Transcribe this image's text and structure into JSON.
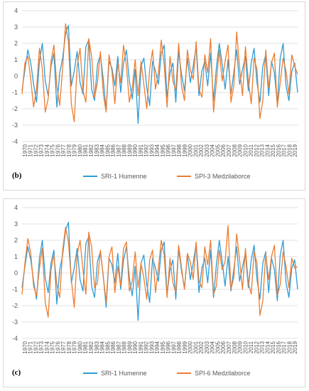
{
  "chart_data": [
    {
      "type": "line",
      "panel_label": "(b)",
      "ylim": [
        -4,
        4
      ],
      "y_ticks": [
        4,
        3,
        2,
        1,
        0,
        -1,
        -2,
        -3,
        -4
      ],
      "x_ticks": [
        "1970",
        "1971",
        "1972",
        "1973",
        "1974",
        "1975",
        "1976",
        "1977",
        "1978",
        "1979",
        "1980",
        "1981",
        "1982",
        "1983",
        "1984",
        "1985",
        "1986",
        "1987",
        "1988",
        "1989",
        "1990",
        "1991",
        "1992",
        "1993",
        "1994",
        "1995",
        "1996",
        "1997",
        "1998",
        "1999",
        "2000",
        "2001",
        "2002",
        "2003",
        "2004",
        "2005",
        "2006",
        "2007",
        "2008",
        "2009",
        "2010",
        "2011",
        "2012",
        "2013",
        "2014",
        "2015",
        "2016",
        "2017",
        "2018",
        "2019"
      ],
      "legend_position": "bottom",
      "grid": true,
      "series": [
        {
          "name": "SRI-1 Humenne",
          "color": "#2E9BD6",
          "values": [
            -0.9,
            0.4,
            1.6,
            0.8,
            -0.5,
            -1.6,
            0.9,
            2.0,
            -0.3,
            -1.2,
            0.6,
            1.4,
            -1.9,
            0.2,
            1.1,
            2.6,
            3.1,
            -0.6,
            0.3,
            1.5,
            -0.4,
            -1.1,
            1.8,
            2.2,
            -0.8,
            -1.5,
            0.7,
            1.3,
            -0.2,
            -2.1,
            0.9,
            0.5,
            -0.6,
            1.2,
            -1.0,
            0.8,
            1.6,
            -0.3,
            -1.4,
            0.4,
            -2.9,
            0.6,
            1.1,
            -0.7,
            -1.8,
            0.9,
            0.3,
            -0.5,
            1.4,
            1.9,
            -1.3,
            0.2,
            0.8,
            -1.6,
            1.5,
            0.1,
            -0.9,
            1.1,
            -0.4,
            0.6,
            1.8,
            -1.2,
            0.3,
            0.9,
            -0.6,
            1.4,
            -1.5,
            0.5,
            2.0,
            0.7,
            -0.8,
            1.0,
            -1.1,
            0.2,
            1.6,
            -0.5,
            0.4,
            1.2,
            -0.9,
            0.8,
            1.7,
            -0.4,
            -1.6,
            0.6,
            1.3,
            -1.2,
            0.9,
            0.2,
            -1.7,
            1.1,
            2.0,
            -0.6,
            -1.5,
            0.3,
            0.8,
            -1.0
          ]
        },
        {
          "name": "SPI-3 Medzilaborce",
          "color": "#ED7D31",
          "values": [
            -1.1,
            0.8,
            1.2,
            -0.2,
            -1.9,
            -0.8,
            1.7,
            0.4,
            -2.2,
            -1.4,
            0.9,
            1.9,
            -0.6,
            -1.8,
            0.5,
            3.2,
            2.1,
            -1.7,
            -2.8,
            0.6,
            1.7,
            -0.9,
            -1.6,
            2.3,
            1.2,
            -1.3,
            -0.4,
            1.5,
            -1.1,
            -2.2,
            1.3,
            0.3,
            -1.7,
            0.8,
            -0.4,
            1.9,
            0.6,
            -1.6,
            -0.7,
            1.0,
            -1.2,
            0.9,
            -0.5,
            -2.0,
            0.4,
            1.6,
            -0.8,
            0.2,
            2.2,
            0.7,
            -1.9,
            1.2,
            -0.3,
            -0.9,
            2.0,
            -0.6,
            -1.5,
            1.6,
            0.4,
            -0.2,
            2.1,
            -0.8,
            -1.3,
            1.3,
            0.2,
            2.3,
            -2.2,
            -0.4,
            1.6,
            -0.3,
            0.9,
            1.9,
            -1.6,
            -0.6,
            2.7,
            0.5,
            -1.2,
            1.8,
            -0.3,
            -1.7,
            1.1,
            0.4,
            -2.6,
            -1.5,
            1.6,
            -0.7,
            0.8,
            1.4,
            -1.9,
            -0.4,
            1.1,
            0.3,
            -1.1,
            1.3,
            0.6,
            0.1
          ]
        }
      ]
    },
    {
      "type": "line",
      "panel_label": "(c)",
      "ylim": [
        -4,
        4
      ],
      "y_ticks": [
        4,
        3,
        2,
        1,
        0,
        -1,
        -2,
        -3,
        -4
      ],
      "x_ticks": [
        "1970",
        "1971",
        "1972",
        "1973",
        "1974",
        "1975",
        "1976",
        "1977",
        "1978",
        "1979",
        "1980",
        "1981",
        "1982",
        "1983",
        "1984",
        "1985",
        "1986",
        "1987",
        "1988",
        "1989",
        "1990",
        "1991",
        "1992",
        "1993",
        "1994",
        "1995",
        "1996",
        "1997",
        "1998",
        "1999",
        "2000",
        "2001",
        "2002",
        "2003",
        "2004",
        "2005",
        "2006",
        "2007",
        "2008",
        "2009",
        "2010",
        "2011",
        "2012",
        "2013",
        "2014",
        "2015",
        "2016",
        "2017",
        "2018",
        "2019"
      ],
      "legend_position": "bottom",
      "grid": true,
      "series": [
        {
          "name": "SRI-1 Humenne",
          "color": "#2E9BD6",
          "values": [
            -0.9,
            0.4,
            1.6,
            0.8,
            -0.5,
            -1.6,
            0.9,
            2.0,
            -0.3,
            -1.2,
            0.6,
            1.4,
            -1.9,
            0.2,
            1.1,
            2.6,
            3.1,
            -0.6,
            0.3,
            1.5,
            -0.4,
            -1.1,
            1.8,
            2.2,
            -0.8,
            -1.5,
            0.7,
            1.3,
            -0.2,
            -2.1,
            0.9,
            0.5,
            -0.6,
            1.2,
            -1.0,
            0.8,
            1.6,
            -0.3,
            -1.4,
            0.4,
            -2.9,
            0.6,
            1.1,
            -0.7,
            -1.8,
            0.9,
            0.3,
            -0.5,
            1.4,
            1.9,
            -1.3,
            0.2,
            0.8,
            -1.6,
            1.5,
            0.1,
            -0.9,
            1.1,
            -0.4,
            0.6,
            1.8,
            -1.2,
            0.3,
            0.9,
            -0.6,
            1.4,
            -1.5,
            0.5,
            2.0,
            0.7,
            -0.8,
            1.0,
            -1.1,
            0.2,
            1.6,
            -0.5,
            0.4,
            1.2,
            -0.9,
            0.8,
            1.7,
            -0.4,
            -1.6,
            0.6,
            1.3,
            -1.2,
            0.9,
            0.2,
            -1.7,
            1.1,
            2.0,
            -0.6,
            -1.5,
            0.3,
            0.8,
            -1.0
          ]
        },
        {
          "name": "SPI-6 Medzilaborce",
          "color": "#ED7D31",
          "values": [
            -1.3,
            0.6,
            2.1,
            1.2,
            -0.8,
            -1.4,
            0.3,
            1.5,
            -1.8,
            -2.7,
            0.2,
            1.1,
            -0.7,
            -1.5,
            1.4,
            2.8,
            1.9,
            -0.4,
            -2.1,
            1.1,
            2.0,
            0.2,
            -1.3,
            2.5,
            1.6,
            -0.9,
            -0.6,
            1.4,
            -0.2,
            -1.8,
            1.0,
            1.6,
            -1.2,
            0.4,
            -0.8,
            1.5,
            1.9,
            -1.1,
            -0.5,
            1.3,
            -0.9,
            0.6,
            -0.3,
            -1.6,
            0.8,
            1.4,
            -1.2,
            0.3,
            2.0,
            1.1,
            -1.5,
            0.9,
            -0.6,
            -1.2,
            1.7,
            0.3,
            -1.0,
            1.2,
            0.7,
            -0.4,
            1.9,
            -0.5,
            -0.9,
            1.6,
            0.5,
            2.0,
            -1.3,
            -0.8,
            1.4,
            0.2,
            0.7,
            2.9,
            -1.0,
            -0.3,
            2.4,
            0.8,
            -1.0,
            1.5,
            -0.6,
            -1.3,
            1.3,
            0.6,
            -2.6,
            -1.7,
            1.2,
            -0.4,
            1.0,
            1.7,
            -1.4,
            -0.7,
            1.3,
            0.4,
            -0.9,
            0.9,
            0.3,
            0.4
          ]
        }
      ]
    }
  ]
}
